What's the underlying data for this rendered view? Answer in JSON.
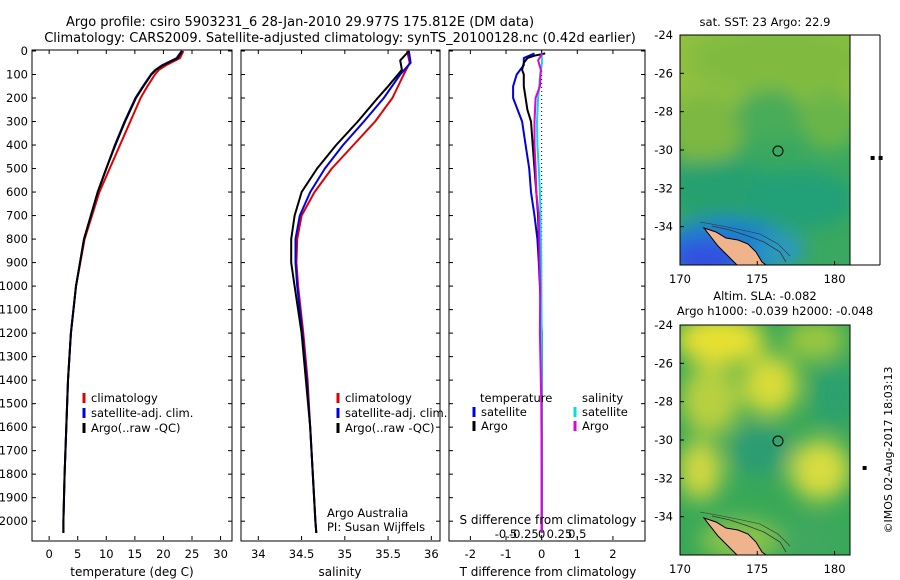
{
  "title": {
    "line1": "Argo profile: csiro 5903231_6 28-Jan-2010 29.977S 175.812E (DM data)",
    "line2": "Climatology: CARS2009. Satellite-adjusted climatology: synTS_20100128.nc (0.42d earlier)"
  },
  "colors": {
    "climatology": "#e00000",
    "satellite": "#0000e0",
    "argo": "#000000",
    "cyan": "#00e0e0",
    "magenta": "#e000e0"
  },
  "chart_data": [
    {
      "type": "line",
      "name": "temperature",
      "xlabel": "temperature (deg C)",
      "ylabel": "",
      "xlim": [
        -3,
        32
      ],
      "ylim": [
        2080,
        0
      ],
      "xticks": [
        0,
        5,
        10,
        15,
        20,
        25,
        30
      ],
      "yticks": [
        0,
        100,
        200,
        300,
        400,
        500,
        600,
        700,
        800,
        900,
        1000,
        1100,
        1200,
        1300,
        1400,
        1500,
        1600,
        1700,
        1800,
        1900,
        2000
      ],
      "legend": [
        "climatology",
        "satellite-adj. clim.",
        "Argo(..raw -QC)"
      ],
      "series": [
        {
          "name": "climatology",
          "color": "#e00000",
          "depth": [
            0,
            30,
            60,
            80,
            100,
            150,
            200,
            300,
            400,
            500,
            600,
            800,
            1000,
            1200,
            1400,
            1600,
            1800,
            2000,
            2050
          ],
          "values": [
            23.5,
            22.9,
            20.5,
            19.2,
            18.5,
            17.2,
            16.0,
            14.2,
            12.4,
            10.6,
            8.8,
            6.2,
            4.7,
            3.8,
            3.3,
            3.0,
            2.7,
            2.5,
            2.5
          ]
        },
        {
          "name": "satellite-adj. clim.",
          "color": "#0000e0",
          "depth": [
            0,
            30,
            60,
            80,
            100,
            150,
            200,
            300,
            400,
            500,
            600,
            800,
            1000,
            1200,
            1400,
            1600,
            1800,
            2000,
            2050
          ],
          "values": [
            23.2,
            22.3,
            19.8,
            18.6,
            17.8,
            16.4,
            15.1,
            13.2,
            11.5,
            10.0,
            8.5,
            6.1,
            4.7,
            3.8,
            3.3,
            3.0,
            2.7,
            2.5,
            2.5
          ]
        },
        {
          "name": "Argo(..raw -QC)",
          "color": "#000000",
          "depth": [
            0,
            30,
            60,
            80,
            100,
            150,
            200,
            300,
            400,
            500,
            600,
            800,
            1000,
            1200,
            1400,
            1600,
            1800,
            2000,
            2050
          ],
          "values": [
            23.3,
            22.5,
            20.0,
            18.7,
            17.9,
            16.5,
            15.2,
            13.3,
            11.6,
            10.0,
            8.5,
            6.1,
            4.7,
            3.8,
            3.3,
            3.0,
            2.7,
            2.5,
            2.5
          ]
        }
      ]
    },
    {
      "type": "line",
      "name": "salinity",
      "xlabel": "salinity",
      "ylabel": "",
      "xlim": [
        33.8,
        36.1
      ],
      "ylim": [
        2080,
        0
      ],
      "xticks": [
        34,
        34.5,
        35,
        35.5,
        36
      ],
      "legend": [
        "climatology",
        "satellite-adj. clim.",
        "Argo(..raw -QC)"
      ],
      "annotation": [
        "Argo Australia",
        "PI: Susan Wijffels"
      ],
      "series": [
        {
          "name": "climatology",
          "color": "#e00000",
          "depth": [
            0,
            50,
            100,
            200,
            300,
            400,
            500,
            600,
            700,
            800,
            900,
            1000,
            1100,
            1200,
            1400,
            1600,
            1800,
            2000,
            2050
          ],
          "values": [
            35.72,
            35.75,
            35.68,
            35.55,
            35.35,
            35.1,
            34.85,
            34.65,
            34.5,
            34.45,
            34.44,
            34.46,
            34.49,
            34.52,
            34.57,
            34.6,
            34.63,
            34.66,
            34.67
          ]
        },
        {
          "name": "satellite-adj. clim.",
          "color": "#0000e0",
          "depth": [
            0,
            50,
            100,
            200,
            300,
            400,
            500,
            600,
            700,
            800,
            900,
            1000,
            1100,
            1200,
            1400,
            1600,
            1800,
            2000,
            2050
          ],
          "values": [
            35.74,
            35.76,
            35.64,
            35.45,
            35.22,
            34.98,
            34.77,
            34.6,
            34.48,
            34.43,
            34.43,
            34.45,
            34.48,
            34.51,
            34.56,
            34.6,
            34.63,
            34.66,
            34.67
          ]
        },
        {
          "name": "Argo(..raw -QC)",
          "color": "#000000",
          "depth": [
            0,
            40,
            80,
            150,
            200,
            300,
            400,
            500,
            600,
            700,
            800,
            900,
            1000,
            1100,
            1200,
            1400,
            1600,
            1800,
            2000,
            2050
          ],
          "values": [
            35.74,
            35.64,
            35.66,
            35.5,
            35.38,
            35.15,
            34.9,
            34.68,
            34.5,
            34.42,
            34.38,
            34.38,
            34.42,
            34.46,
            34.5,
            34.55,
            34.6,
            34.63,
            34.66,
            34.67
          ]
        }
      ]
    },
    {
      "type": "line",
      "name": "difference",
      "xlabel": "T difference from climatology",
      "xlabel_top": "S difference from climatology",
      "xlim": [
        -2.6,
        2.9
      ],
      "ylim": [
        2080,
        0
      ],
      "xticks": [
        -2,
        -1,
        0,
        1,
        2
      ],
      "xticks_s": [
        "-0.5",
        "-0.25",
        "0",
        "0.25",
        "0.5"
      ],
      "legend_left_title": "temperature",
      "legend_right_title": "salinity",
      "legend_left": [
        "satellite",
        "Argo"
      ],
      "legend_right": [
        "satellite",
        "Argo"
      ],
      "series": [
        {
          "name": "T satellite",
          "color": "#0000e0",
          "depth": [
            10,
            30,
            60,
            100,
            150,
            200,
            300,
            400,
            500,
            600,
            700,
            800,
            900,
            1000,
            1200,
            1500,
            1800,
            2050
          ],
          "values": [
            -0.2,
            -0.5,
            -0.5,
            -0.7,
            -0.8,
            -0.8,
            -0.55,
            -0.45,
            -0.35,
            -0.3,
            -0.2,
            -0.12,
            -0.08,
            -0.05,
            0.0,
            0.0,
            0.0,
            0.0
          ]
        },
        {
          "name": "T Argo",
          "color": "#000000",
          "depth": [
            10,
            20,
            30,
            50,
            80,
            100,
            150,
            200,
            250,
            300,
            400,
            500,
            600,
            700,
            800,
            900,
            1000,
            1200,
            1500,
            1800,
            2050
          ],
          "values": [
            0.1,
            -0.2,
            -0.4,
            -0.5,
            -0.55,
            -0.5,
            -0.5,
            -0.45,
            -0.4,
            -0.3,
            -0.25,
            -0.2,
            -0.15,
            -0.1,
            -0.08,
            -0.05,
            -0.03,
            0.0,
            0.0,
            0.0,
            0.0
          ]
        },
        {
          "name": "S satellite",
          "color": "#00e0e0",
          "depth": [
            10,
            50,
            100,
            200,
            300,
            400,
            500,
            600,
            700,
            800,
            900,
            1000,
            1200,
            1500,
            1800,
            2050
          ],
          "values": [
            0.0,
            0.01,
            -0.04,
            -0.1,
            -0.13,
            -0.12,
            -0.08,
            -0.05,
            -0.03,
            -0.02,
            -0.01,
            -0.01,
            0.0,
            0.0,
            0.0,
            0.0
          ]
        },
        {
          "name": "S Argo",
          "color": "#e000e0",
          "depth": [
            10,
            40,
            80,
            150,
            200,
            300,
            400,
            500,
            600,
            700,
            800,
            900,
            1000,
            1200,
            1500,
            1800,
            2050
          ],
          "values": [
            0.02,
            -0.1,
            -0.02,
            -0.05,
            -0.17,
            -0.2,
            -0.2,
            -0.17,
            -0.15,
            -0.08,
            -0.07,
            -0.06,
            -0.04,
            -0.05,
            -0.01,
            0.0,
            0.0
          ]
        }
      ]
    },
    {
      "type": "heatmap",
      "name": "sst-map",
      "title": "sat. SST: 23 Argo: 22.9",
      "xticks": [
        170,
        175,
        180
      ],
      "yticks": [
        -24,
        -26,
        -28,
        -30,
        -32,
        -34
      ],
      "marker": [
        175.8,
        -30.0
      ]
    },
    {
      "type": "heatmap",
      "name": "sla-map",
      "title_line1": "Altim. SLA: -0.082",
      "title_line2": "Argo h1000: -0.039 h2000: -0.048",
      "xticks": [
        170,
        175,
        180
      ],
      "yticks": [
        -24,
        -26,
        -28,
        -30,
        -32,
        -34
      ],
      "marker": [
        175.8,
        -30.0
      ]
    }
  ],
  "credit": "©IMOS 02-Aug-2017 18:03:13"
}
